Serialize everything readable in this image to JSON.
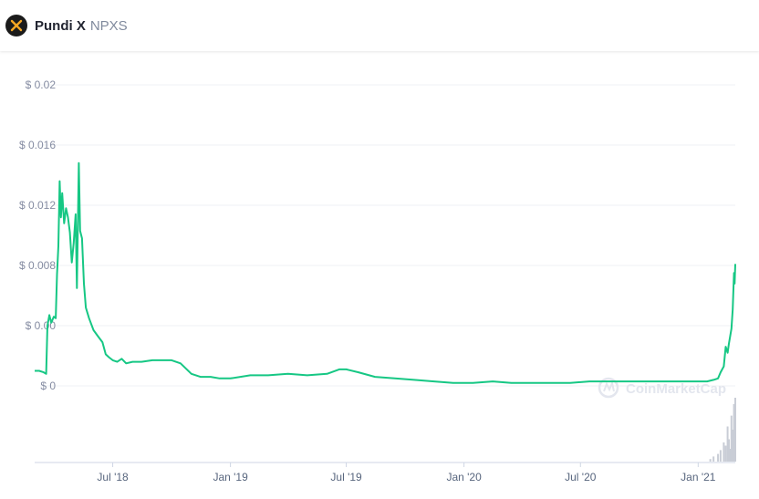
{
  "coin": {
    "name": "Pundi X",
    "symbol": "NPXS",
    "logo_icon": "pundi-x-logo-icon"
  },
  "watermark": "CoinMarketCap",
  "colors": {
    "line": "#16c784",
    "volume": "#c9cdd6",
    "grid": "#eff2f5",
    "tick_text": "#858ca2",
    "logo_bg": "#1b1b1b",
    "logo_mark": "#f5a623"
  },
  "chart_data": {
    "type": "line",
    "title": "",
    "xlabel": "",
    "ylabel": "",
    "ylim": [
      0,
      0.02
    ],
    "y_ticks": [
      0,
      0.004,
      0.008,
      0.012,
      0.016,
      0.02
    ],
    "y_tick_labels": [
      "$ 0",
      "$ 0.00",
      "$ 0.008",
      "$ 0.012",
      "$ 0.016",
      "$ 0.02"
    ],
    "x_tick_labels": [
      "Jul '18",
      "Jan '19",
      "Jul '19",
      "Jan '20",
      "Jul '20",
      "Jan '21"
    ],
    "x_tick_dates": [
      "2018-07-01",
      "2019-01-01",
      "2019-07-01",
      "2020-01-01",
      "2020-07-01",
      "2021-01-01"
    ],
    "grid": true,
    "legend": "none",
    "series": [
      {
        "points": [
          [
            "2018-03-01",
            0.001
          ],
          [
            "2018-03-08",
            0.001
          ],
          [
            "2018-03-15",
            0.0009
          ],
          [
            "2018-03-19",
            0.0008
          ],
          [
            "2018-03-21",
            0.004
          ],
          [
            "2018-03-24",
            0.0047
          ],
          [
            "2018-03-27",
            0.0042
          ],
          [
            "2018-03-31",
            0.0046
          ],
          [
            "2018-04-03",
            0.0045
          ],
          [
            "2018-04-05",
            0.0074
          ],
          [
            "2018-04-07",
            0.0093
          ],
          [
            "2018-04-09",
            0.0136
          ],
          [
            "2018-04-11",
            0.0112
          ],
          [
            "2018-04-13",
            0.0128
          ],
          [
            "2018-04-16",
            0.0108
          ],
          [
            "2018-04-19",
            0.0118
          ],
          [
            "2018-04-22",
            0.0112
          ],
          [
            "2018-04-25",
            0.0102
          ],
          [
            "2018-04-28",
            0.0082
          ],
          [
            "2018-05-01",
            0.0095
          ],
          [
            "2018-05-04",
            0.0114
          ],
          [
            "2018-05-06",
            0.0065
          ],
          [
            "2018-05-09",
            0.0148
          ],
          [
            "2018-05-11",
            0.0103
          ],
          [
            "2018-05-14",
            0.0098
          ],
          [
            "2018-05-17",
            0.0068
          ],
          [
            "2018-05-20",
            0.0052
          ],
          [
            "2018-05-25",
            0.0045
          ],
          [
            "2018-06-01",
            0.0037
          ],
          [
            "2018-06-08",
            0.0033
          ],
          [
            "2018-06-15",
            0.0029
          ],
          [
            "2018-06-20",
            0.0021
          ],
          [
            "2018-06-25",
            0.0019
          ],
          [
            "2018-07-01",
            0.0017
          ],
          [
            "2018-07-08",
            0.0016
          ],
          [
            "2018-07-15",
            0.0018
          ],
          [
            "2018-07-22",
            0.0015
          ],
          [
            "2018-08-01",
            0.0016
          ],
          [
            "2018-08-15",
            0.0016
          ],
          [
            "2018-09-01",
            0.0017
          ],
          [
            "2018-09-15",
            0.0017
          ],
          [
            "2018-10-01",
            0.0017
          ],
          [
            "2018-10-15",
            0.0015
          ],
          [
            "2018-11-01",
            0.0008
          ],
          [
            "2018-11-15",
            0.0006
          ],
          [
            "2018-12-01",
            0.0006
          ],
          [
            "2018-12-15",
            0.0005
          ],
          [
            "2019-01-01",
            0.0005
          ],
          [
            "2019-02-01",
            0.0007
          ],
          [
            "2019-03-01",
            0.0007
          ],
          [
            "2019-04-01",
            0.0008
          ],
          [
            "2019-05-01",
            0.0007
          ],
          [
            "2019-06-01",
            0.0008
          ],
          [
            "2019-06-20",
            0.0011
          ],
          [
            "2019-07-01",
            0.0011
          ],
          [
            "2019-07-20",
            0.0009
          ],
          [
            "2019-08-15",
            0.0006
          ],
          [
            "2019-09-15",
            0.0005
          ],
          [
            "2019-10-15",
            0.0004
          ],
          [
            "2019-11-15",
            0.0003
          ],
          [
            "2019-12-15",
            0.0002
          ],
          [
            "2020-01-15",
            0.0002
          ],
          [
            "2020-02-15",
            0.0003
          ],
          [
            "2020-03-15",
            0.0002
          ],
          [
            "2020-04-15",
            0.0002
          ],
          [
            "2020-05-15",
            0.0002
          ],
          [
            "2020-06-15",
            0.0002
          ],
          [
            "2020-07-15",
            0.0003
          ],
          [
            "2020-08-15",
            0.0003
          ],
          [
            "2020-09-15",
            0.0003
          ],
          [
            "2020-10-15",
            0.0003
          ],
          [
            "2020-11-15",
            0.0003
          ],
          [
            "2020-12-15",
            0.0003
          ],
          [
            "2021-01-15",
            0.0003
          ],
          [
            "2021-01-25",
            0.0004
          ],
          [
            "2021-02-01",
            0.0005
          ],
          [
            "2021-02-05",
            0.0009
          ],
          [
            "2021-02-10",
            0.0013
          ],
          [
            "2021-02-13",
            0.0026
          ],
          [
            "2021-02-16",
            0.0022
          ],
          [
            "2021-02-18",
            0.0028
          ],
          [
            "2021-02-22",
            0.0038
          ],
          [
            "2021-02-24",
            0.0051
          ],
          [
            "2021-02-26",
            0.0075
          ],
          [
            "2021-02-27",
            0.0068
          ],
          [
            "2021-02-28",
            0.0081
          ]
        ]
      }
    ],
    "volume_relative": [
      [
        "2021-01-20",
        0.04
      ],
      [
        "2021-01-25",
        0.08
      ],
      [
        "2021-02-01",
        0.12
      ],
      [
        "2021-02-05",
        0.18
      ],
      [
        "2021-02-10",
        0.3
      ],
      [
        "2021-02-13",
        0.25
      ],
      [
        "2021-02-16",
        0.55
      ],
      [
        "2021-02-18",
        0.35
      ],
      [
        "2021-02-20",
        0.2
      ],
      [
        "2021-02-22",
        0.72
      ],
      [
        "2021-02-24",
        0.5
      ],
      [
        "2021-02-26",
        0.9
      ],
      [
        "2021-02-27",
        0.8
      ],
      [
        "2021-02-28",
        1.0
      ]
    ]
  }
}
